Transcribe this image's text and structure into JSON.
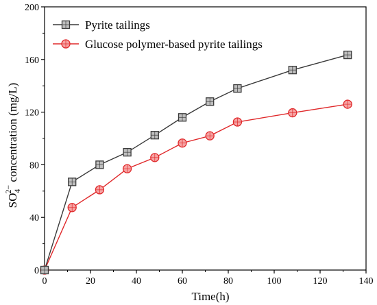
{
  "chart_data": {
    "type": "line",
    "xlabel": "Time(h)",
    "ylabel_parts": {
      "base": "SO",
      "sub": "4",
      "sup": "2−",
      "rest": "  concentration  (mg/L)"
    },
    "xlim": [
      0,
      140
    ],
    "ylim": [
      0,
      200
    ],
    "xticks": [
      0,
      20,
      40,
      60,
      80,
      100,
      120,
      140
    ],
    "yticks": [
      0,
      40,
      80,
      120,
      160,
      200
    ],
    "grid": false,
    "legend_position": "top-left",
    "series": [
      {
        "name": "Pyrite tailings",
        "marker": "square",
        "line_color": "#3a3a3a",
        "marker_fill": "#bfbfbf",
        "marker_stroke": "#3a3a3a",
        "x": [
          0,
          12,
          24,
          36,
          48,
          60,
          72,
          84,
          108,
          132
        ],
        "y": [
          0,
          67,
          80,
          89.5,
          102.5,
          116,
          128,
          138,
          152,
          163.5
        ]
      },
      {
        "name": "Glucose polymer-based pyrite tailings",
        "marker": "circle",
        "line_color": "#e0282a",
        "marker_fill": "#f6a3a3",
        "marker_stroke": "#e0282a",
        "x": [
          0,
          12,
          24,
          36,
          48,
          60,
          72,
          84,
          108,
          132
        ],
        "y": [
          0,
          47.5,
          61,
          77,
          85.5,
          96.5,
          102,
          112.5,
          119.5,
          126
        ]
      }
    ]
  }
}
